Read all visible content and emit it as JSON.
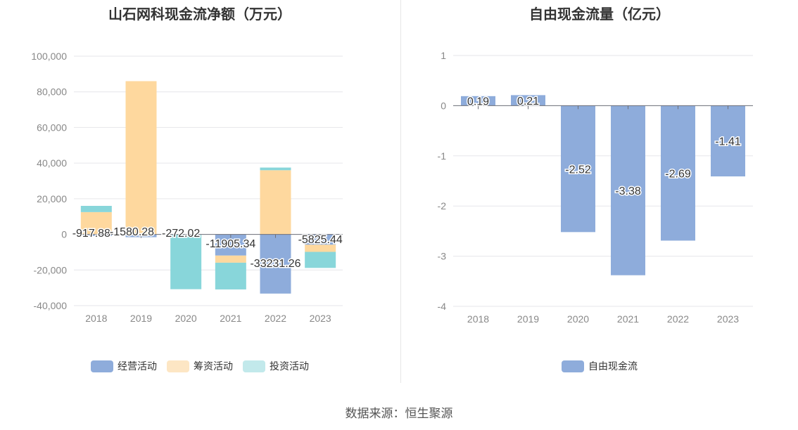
{
  "left_chart": {
    "title": "山石网科现金流净额（万元）",
    "legend": [
      {
        "label": "经营活动",
        "color": "#8eacdb"
      },
      {
        "label": "筹资活动",
        "color": "#fed89e"
      },
      {
        "label": "投资活动",
        "color": "#88d6da"
      }
    ]
  },
  "right_chart": {
    "title": "自由现金流量（亿元）",
    "legend": [
      {
        "label": "自由现金流",
        "color": "#8eacdb"
      }
    ]
  },
  "footer": {
    "source": "数据来源：恒生聚源"
  },
  "chart_data": [
    {
      "type": "bar",
      "stacked": true,
      "title": "山石网科现金流净额（万元）",
      "categories": [
        "2018",
        "2019",
        "2020",
        "2021",
        "2022",
        "2023"
      ],
      "ylim": [
        -40000,
        100000
      ],
      "yticks": [
        100000,
        80000,
        60000,
        40000,
        20000,
        0,
        -20000,
        -40000
      ],
      "ytick_labels": [
        "100,000",
        "80,000",
        "60,000",
        "40,000",
        "20,000",
        "0",
        "-20,000",
        "-40,000"
      ],
      "grid": true,
      "legend_position": "bottom",
      "series": [
        {
          "name": "经营活动",
          "color": "#8eacdb",
          "values": [
            -917.88,
            -1580.28,
            -272.02,
            -11905.34,
            -33231.26,
            -5825.44
          ]
        },
        {
          "name": "筹资活动",
          "color": "#fed89e",
          "values": [
            12500,
            86000,
            0,
            -4000,
            36000,
            -4000
          ]
        },
        {
          "name": "投资活动",
          "color": "#88d6da",
          "values": [
            3500,
            0,
            -30500,
            -15000,
            1500,
            -9000
          ]
        }
      ],
      "data_labels": [
        "-917.88",
        "-1580.28",
        "-272.02",
        "-11905.34",
        "-33231.26",
        "-5825.44"
      ]
    },
    {
      "type": "bar",
      "title": "自由现金流量（亿元）",
      "categories": [
        "2018",
        "2019",
        "2020",
        "2021",
        "2022",
        "2023"
      ],
      "ylim": [
        -4,
        1
      ],
      "yticks": [
        1,
        0,
        -1,
        -2,
        -3,
        -4
      ],
      "ytick_labels": [
        "1",
        "0",
        "-1",
        "-2",
        "-3",
        "-4"
      ],
      "grid": true,
      "legend_position": "bottom",
      "series": [
        {
          "name": "自由现金流",
          "color": "#8eacdb",
          "values": [
            0.19,
            0.21,
            -2.52,
            -3.38,
            -2.69,
            -1.41
          ]
        }
      ],
      "data_labels": [
        "0.19",
        "0.21",
        "-2.52",
        "-3.38",
        "-2.69",
        "-1.41"
      ]
    }
  ]
}
